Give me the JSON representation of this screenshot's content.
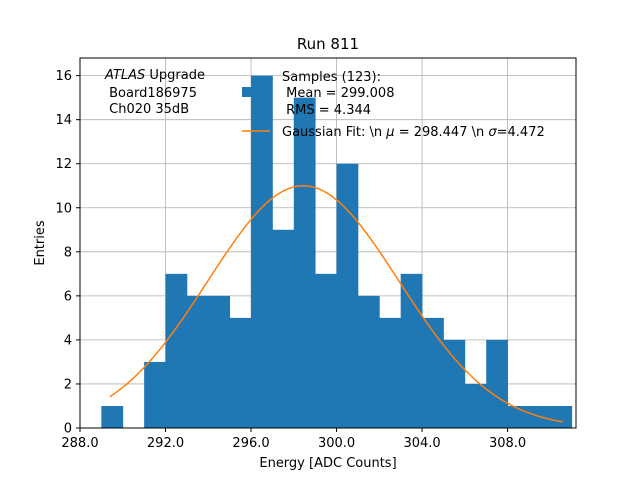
{
  "chart_data": {
    "type": "bar",
    "title": "Run 811",
    "xlabel": "Energy [ADC Counts]",
    "ylabel": "Entries",
    "xlim": [
      288.0,
      311.2
    ],
    "ylim": [
      0,
      16.8
    ],
    "x_ticks": [
      288.0,
      292.0,
      296.0,
      300.0,
      304.0,
      308.0
    ],
    "x_tick_labels": [
      "288.0",
      "292.0",
      "296.0",
      "300.0",
      "304.0",
      "308.0"
    ],
    "y_ticks": [
      0,
      2,
      4,
      6,
      8,
      10,
      12,
      14,
      16
    ],
    "y_tick_labels": [
      "0",
      "2",
      "4",
      "6",
      "8",
      "10",
      "12",
      "14",
      "16"
    ],
    "grid": true,
    "bar_color": "#1f77b4",
    "fit_color": "#ff7f0e",
    "bins": [
      {
        "left": 289.0,
        "right": 290.0,
        "value": 1
      },
      {
        "left": 291.0,
        "right": 292.0,
        "value": 3
      },
      {
        "left": 292.0,
        "right": 293.0,
        "value": 7
      },
      {
        "left": 293.0,
        "right": 294.0,
        "value": 6
      },
      {
        "left": 294.0,
        "right": 295.0,
        "value": 6
      },
      {
        "left": 295.0,
        "right": 296.0,
        "value": 5
      },
      {
        "left": 296.0,
        "right": 297.0,
        "value": 16
      },
      {
        "left": 297.0,
        "right": 298.0,
        "value": 9
      },
      {
        "left": 298.0,
        "right": 299.0,
        "value": 15
      },
      {
        "left": 299.0,
        "right": 300.0,
        "value": 7
      },
      {
        "left": 300.0,
        "right": 301.0,
        "value": 12
      },
      {
        "left": 301.0,
        "right": 302.0,
        "value": 6
      },
      {
        "left": 302.0,
        "right": 303.0,
        "value": 5
      },
      {
        "left": 303.0,
        "right": 304.0,
        "value": 7
      },
      {
        "left": 304.0,
        "right": 305.0,
        "value": 5
      },
      {
        "left": 305.0,
        "right": 306.0,
        "value": 4
      },
      {
        "left": 306.0,
        "right": 307.0,
        "value": 2
      },
      {
        "left": 307.0,
        "right": 308.0,
        "value": 4
      },
      {
        "left": 308.0,
        "right": 309.0,
        "value": 1
      },
      {
        "left": 309.0,
        "right": 310.0,
        "value": 1
      },
      {
        "left": 310.0,
        "right": 311.0,
        "value": 1
      }
    ],
    "fit": {
      "mu": 298.447,
      "sigma": 4.472,
      "amplitude": 11.0,
      "x_start": 289.4,
      "x_end": 310.6
    },
    "annotation": {
      "line1_italic": "ATLAS",
      "line1_rest": " Upgrade",
      "line2": " Board186975",
      "line3": " Ch020 35dB"
    },
    "legend": {
      "samples_line1": "Samples (123):",
      "samples_line2": " Mean = 299.008",
      "samples_line3": " RMS = 4.344",
      "fit_prefix": "Gaussian Fit: \\n ",
      "fit_mu_symbol": "μ",
      "fit_mid": " = 298.447 \\n ",
      "fit_sigma_symbol": "σ",
      "fit_suffix": "=4.472"
    }
  }
}
